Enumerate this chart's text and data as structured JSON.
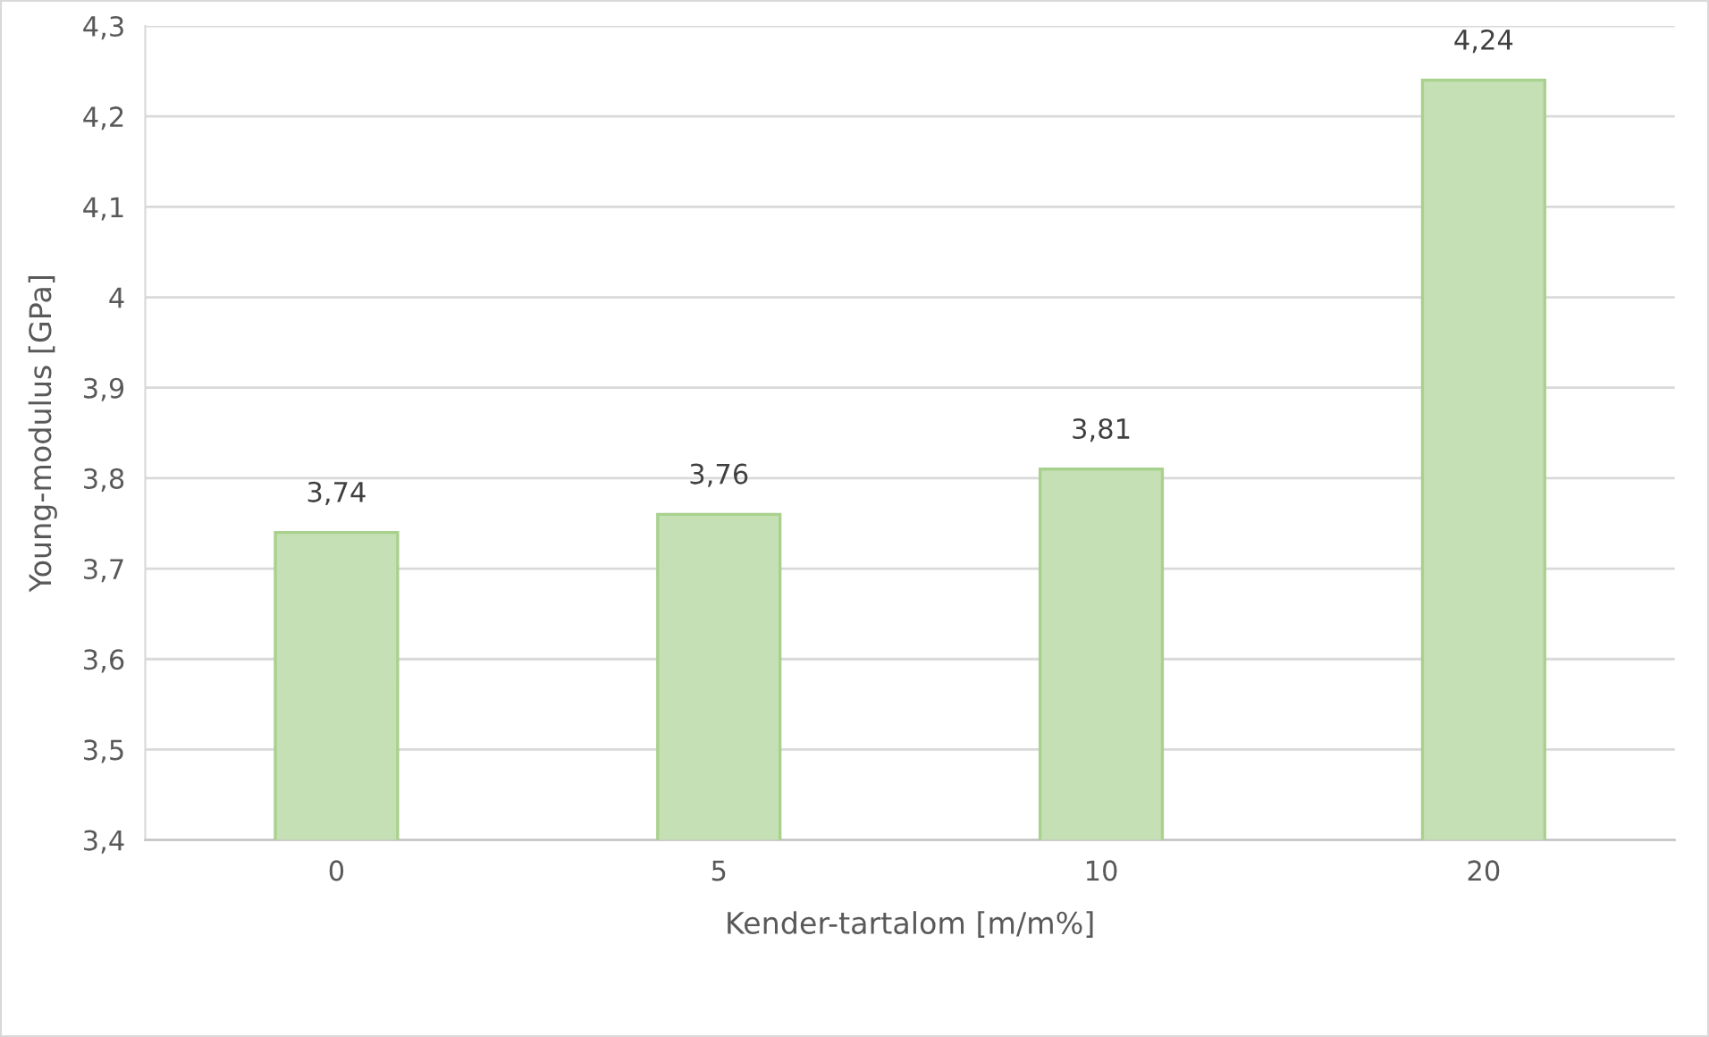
{
  "chart_data": {
    "type": "bar",
    "xlabel": "Kender-tartalom [m/m%]",
    "ylabel": "Young-modulus [GPa]",
    "categories": [
      "0",
      "5",
      "10",
      "20"
    ],
    "values": [
      3.74,
      3.76,
      3.81,
      4.24
    ],
    "value_labels": [
      "3,74",
      "3,76",
      "3,81",
      "4,24"
    ],
    "color": "#c5e0b4",
    "ylim": [
      3.4,
      4.3
    ],
    "yticks": [
      {
        "value": 3.4,
        "label": "3,4"
      },
      {
        "value": 3.5,
        "label": "3,5"
      },
      {
        "value": 3.6,
        "label": "3,6"
      },
      {
        "value": 3.7,
        "label": "3,7"
      },
      {
        "value": 3.8,
        "label": "3,8"
      },
      {
        "value": 3.9,
        "label": "3,9"
      },
      {
        "value": 4,
        "label": "4"
      },
      {
        "value": 4.1,
        "label": "4,1"
      },
      {
        "value": 4.2,
        "label": "4,2"
      },
      {
        "value": 4.3,
        "label": "4,3"
      }
    ],
    "grid": "y",
    "legend": false
  }
}
